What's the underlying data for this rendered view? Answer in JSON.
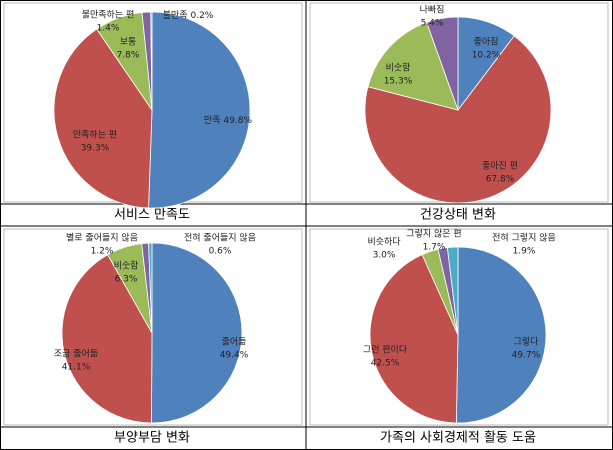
{
  "chart_data": [
    {
      "type": "pie",
      "title": "서비스 만족도",
      "categories": [
        "만족",
        "만족하는 편",
        "보통",
        "불만족하는 편",
        "불만족"
      ],
      "values": [
        49.8,
        39.3,
        7.8,
        1.4,
        0.2
      ],
      "value_labels": [
        "49.8%",
        "39.3%",
        "7.8%",
        "1.4%",
        "0.2%"
      ],
      "colors": [
        "#4f81bd",
        "#c0504d",
        "#9bbb59",
        "#8064a2",
        "#4bacc6"
      ]
    },
    {
      "type": "pie",
      "title": "건강상태 변화",
      "categories": [
        "좋아짐",
        "좋아진 편",
        "비숫함",
        "나빠짐"
      ],
      "values": [
        10.2,
        67.8,
        15.3,
        5.4
      ],
      "value_labels": [
        "10.2%",
        "67.8%",
        "15.3%",
        "5.4%"
      ],
      "colors": [
        "#4f81bd",
        "#c0504d",
        "#9bbb59",
        "#8064a2"
      ]
    },
    {
      "type": "pie",
      "title": "부양부담 변화",
      "categories": [
        "줄어듦",
        "조금 줄어듦",
        "비숫함",
        "별로 줄어들지 않음",
        "전혀 줄어들지 않음"
      ],
      "values": [
        49.4,
        41.1,
        6.3,
        1.2,
        0.6
      ],
      "value_labels": [
        "49.4%",
        "41.1%",
        "6.3%",
        "1.2%",
        "0.6%"
      ],
      "colors": [
        "#4f81bd",
        "#c0504d",
        "#9bbb59",
        "#8064a2",
        "#4bacc6"
      ]
    },
    {
      "type": "pie",
      "title": "가족의 사회경제적 활동 도움",
      "categories": [
        "그렇다",
        "그런 편이다",
        "비슷하다",
        "그렇지 않은 편",
        "전혀 그렇지 않음"
      ],
      "values": [
        49.7,
        42.5,
        3.0,
        1.7,
        1.9
      ],
      "value_labels": [
        "49.7%",
        "42.5%",
        "3.0%",
        "1.7%",
        "1.9%"
      ],
      "colors": [
        "#4f81bd",
        "#c0504d",
        "#9bbb59",
        "#8064a2",
        "#4bacc6"
      ]
    }
  ]
}
